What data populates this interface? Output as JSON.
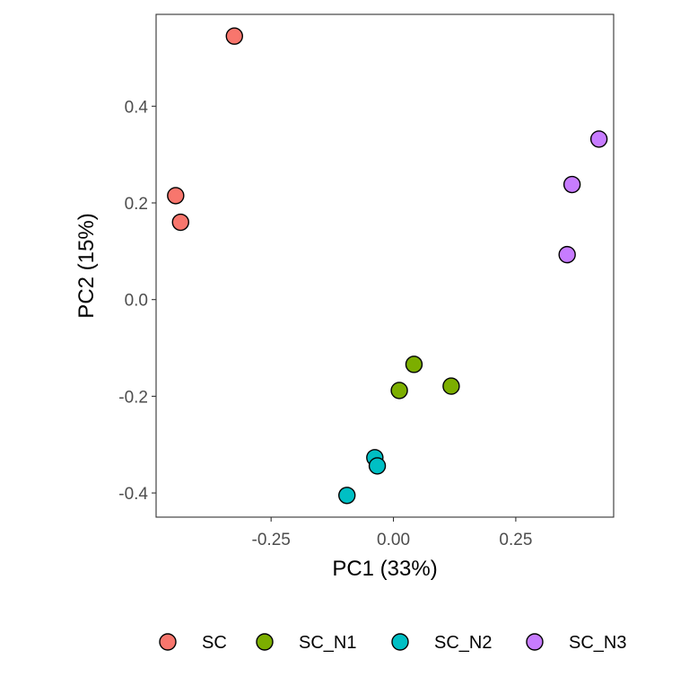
{
  "chart_data": {
    "type": "scatter",
    "xlabel": "PC1 (33%)",
    "ylabel": "PC2 (15%)",
    "xlim": [
      -0.485,
      0.45
    ],
    "ylim": [
      -0.45,
      0.59
    ],
    "x_ticks": [
      {
        "value": -0.25,
        "label": "-0.25"
      },
      {
        "value": 0.0,
        "label": "0.00"
      },
      {
        "value": 0.25,
        "label": "0.25"
      }
    ],
    "y_ticks": [
      {
        "value": 0.4,
        "label": "0.4"
      },
      {
        "value": 0.2,
        "label": "0.2"
      },
      {
        "value": 0.0,
        "label": "0.0"
      },
      {
        "value": -0.2,
        "label": "-0.2"
      },
      {
        "value": -0.4,
        "label": "-0.4"
      }
    ],
    "grid": false,
    "legend_position": "bottom",
    "series": [
      {
        "name": "SC",
        "color": "#F8766D",
        "points": [
          [
            -0.325,
            0.545
          ],
          [
            -0.445,
            0.215
          ],
          [
            -0.435,
            0.16
          ]
        ]
      },
      {
        "name": "SC_N1",
        "color": "#7CAE00",
        "points": [
          [
            0.042,
            -0.134
          ],
          [
            0.012,
            -0.188
          ],
          [
            0.118,
            -0.179
          ]
        ]
      },
      {
        "name": "SC_N2",
        "color": "#00BFC4",
        "points": [
          [
            -0.038,
            -0.327
          ],
          [
            -0.033,
            -0.344
          ],
          [
            -0.095,
            -0.405
          ]
        ]
      },
      {
        "name": "SC_N3",
        "color": "#C77CFF",
        "points": [
          [
            0.42,
            0.332
          ],
          [
            0.365,
            0.238
          ],
          [
            0.355,
            0.093
          ]
        ]
      }
    ]
  }
}
